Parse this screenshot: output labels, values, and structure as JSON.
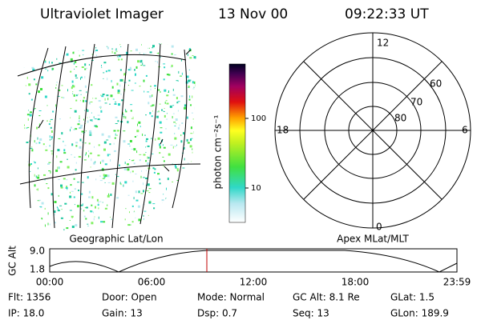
{
  "header": {
    "instrument": "Ultraviolet Imager",
    "date": "13 Nov 00",
    "time": "09:22:33 UT"
  },
  "image": {
    "caption": "Geographic Lat/Lon"
  },
  "colorbar": {
    "label": "photon cm⁻²s⁻¹",
    "ticks": [
      "100",
      "10"
    ]
  },
  "polar": {
    "caption": "Apex MLat/MLT",
    "mlt": [
      "12",
      "18",
      "6",
      "0"
    ],
    "mlat": [
      "60",
      "70",
      "80"
    ]
  },
  "orbit": {
    "ylabel": "GC Alt",
    "yticks": [
      "9.0",
      "1.8"
    ],
    "xticks": [
      "00:00",
      "06:00",
      "12:00",
      "18:00",
      "23:59"
    ]
  },
  "status": {
    "rows": [
      [
        "Flt: 1356",
        "Door: Open",
        "Mode: Normal",
        "GC Alt: 8.1 Re",
        "GLat: 1.5"
      ],
      [
        "IP: 18.0",
        "Gain: 13",
        "Dsp: 0.7",
        "Seq: 13",
        "GLon: 189.9"
      ]
    ]
  }
}
